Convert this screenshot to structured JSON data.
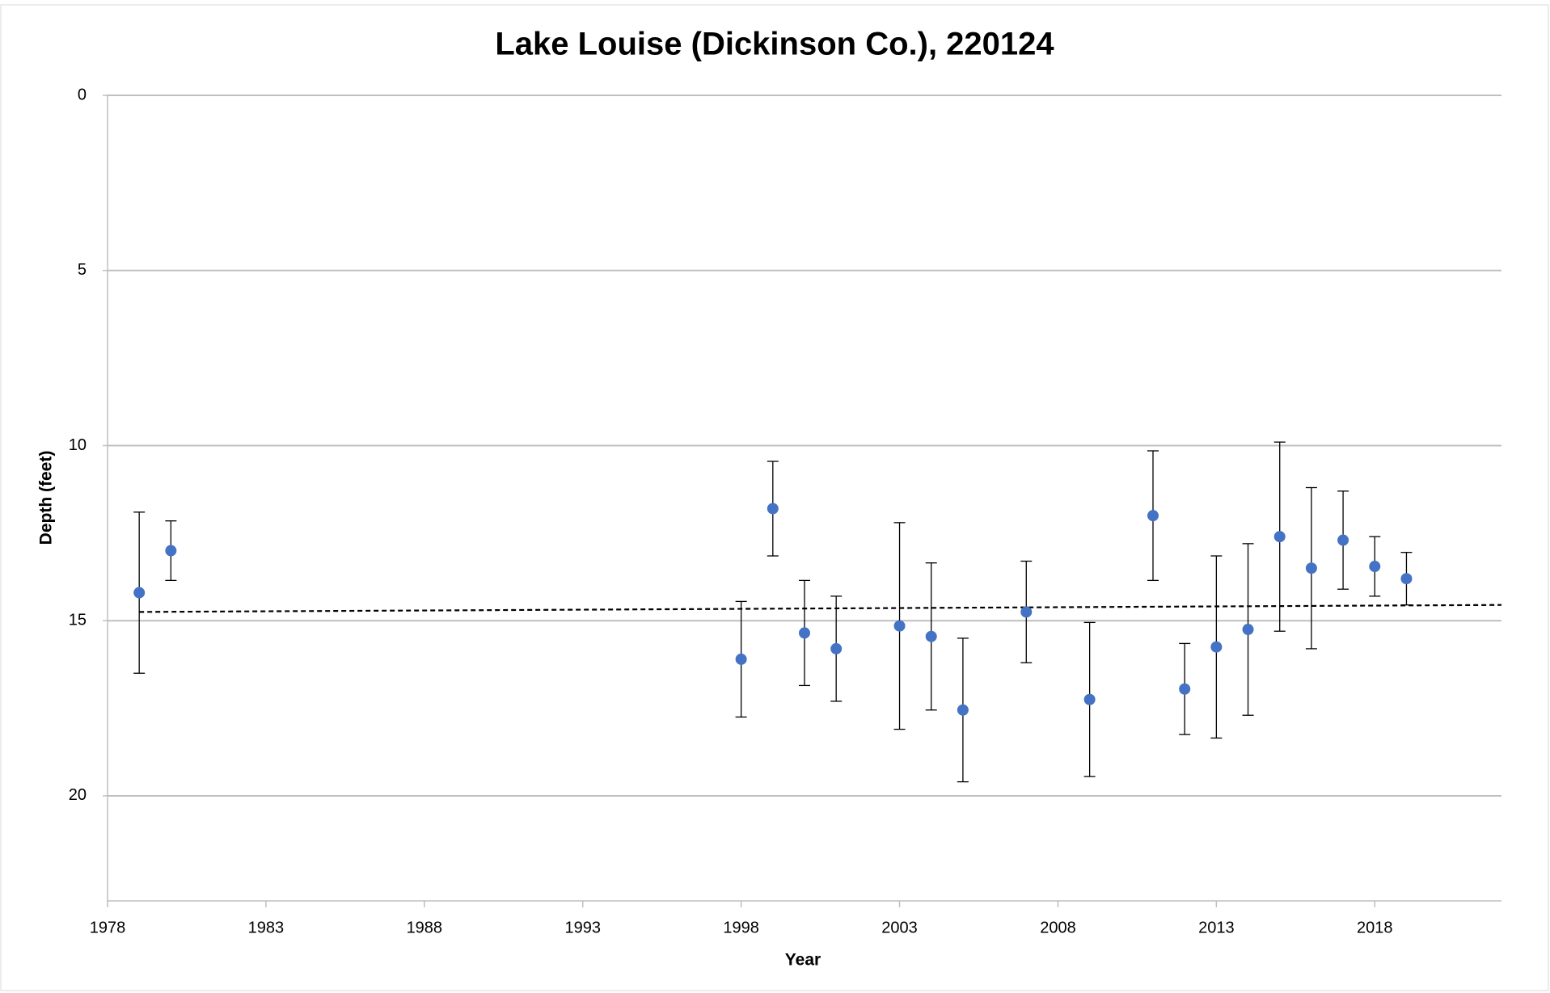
{
  "chart_data": {
    "type": "scatter",
    "title": "Lake Louise (Dickinson Co.), 220124",
    "x_label": "Year",
    "y_label": "Depth (feet)",
    "x": [
      1979,
      1980,
      1998,
      1999,
      2000,
      2001,
      2003,
      2004,
      2005,
      2007,
      2009,
      2011,
      2012,
      2013,
      2014,
      2015,
      2016,
      2017,
      2018,
      2019
    ],
    "values": [
      14.2,
      13.0,
      16.1,
      11.8,
      15.35,
      15.8,
      15.15,
      15.45,
      17.55,
      14.75,
      17.25,
      12.0,
      16.95,
      15.75,
      15.25,
      12.6,
      13.5,
      12.7,
      13.45,
      13.8
    ],
    "errors": [
      2.3,
      0.85,
      1.65,
      1.35,
      1.5,
      1.5,
      2.95,
      2.1,
      2.05,
      1.45,
      2.2,
      1.85,
      1.3,
      2.6,
      2.45,
      2.7,
      2.3,
      1.4,
      0.85,
      0.75
    ],
    "color": "#4472c4",
    "trendline": {
      "x": [
        1979,
        2022
      ],
      "values": [
        14.75,
        14.55
      ],
      "color": "#000000"
    },
    "xlim": [
      1978,
      2022
    ],
    "xticks": [
      1978,
      1983,
      1988,
      1993,
      1998,
      2003,
      2008,
      2013,
      2018
    ],
    "ylim": [
      0,
      23
    ],
    "yticks": [
      0,
      5,
      10,
      15,
      20
    ],
    "y_inverted": true,
    "grid": true
  }
}
